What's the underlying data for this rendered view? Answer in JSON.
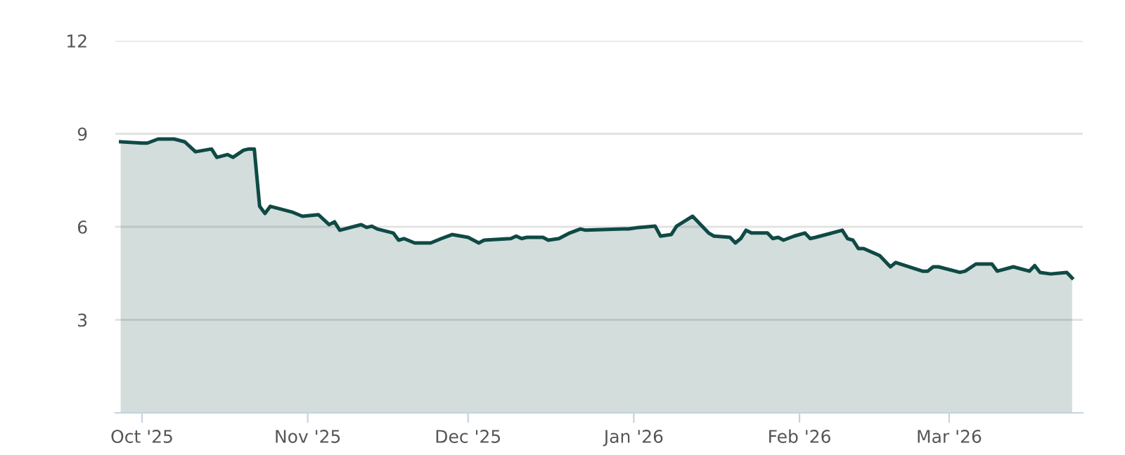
{
  "chart_data": {
    "type": "area",
    "x": [
      "2025-09-27",
      "2025-10-01",
      "2025-10-02",
      "2025-10-04",
      "2025-10-07",
      "2025-10-09",
      "2025-10-11",
      "2025-10-14",
      "2025-10-15",
      "2025-10-17",
      "2025-10-18",
      "2025-10-20",
      "2025-10-21",
      "2025-10-22",
      "2025-10-23",
      "2025-10-24",
      "2025-10-25",
      "2025-10-29",
      "2025-10-31",
      "2025-11-03",
      "2025-11-05",
      "2025-11-06",
      "2025-11-07",
      "2025-11-11",
      "2025-11-12",
      "2025-11-13",
      "2025-11-14",
      "2025-11-17",
      "2025-11-18",
      "2025-11-19",
      "2025-11-21",
      "2025-11-24",
      "2025-11-26",
      "2025-11-28",
      "2025-12-01",
      "2025-12-03",
      "2025-12-04",
      "2025-12-09",
      "2025-12-10",
      "2025-12-11",
      "2025-12-12",
      "2025-12-15",
      "2025-12-16",
      "2025-12-18",
      "2025-12-20",
      "2025-12-22",
      "2025-12-23",
      "2025-12-30",
      "2025-12-31",
      "2026-01-02",
      "2026-01-05",
      "2026-01-06",
      "2026-01-08",
      "2026-01-09",
      "2026-01-12",
      "2026-01-15",
      "2026-01-16",
      "2026-01-19",
      "2026-01-20",
      "2026-01-21",
      "2026-01-22",
      "2026-01-23",
      "2026-01-26",
      "2026-01-27",
      "2026-01-28",
      "2026-01-29",
      "2026-01-31",
      "2026-02-02",
      "2026-02-03",
      "2026-02-04",
      "2026-02-06",
      "2026-02-09",
      "2026-02-10",
      "2026-02-11",
      "2026-02-12",
      "2026-02-13",
      "2026-02-16",
      "2026-02-18",
      "2026-02-19",
      "2026-02-24",
      "2026-02-25",
      "2026-02-26",
      "2026-02-27",
      "2026-03-03",
      "2026-03-04",
      "2026-03-06",
      "2026-03-09",
      "2026-03-10",
      "2026-03-13",
      "2026-03-16",
      "2026-03-17",
      "2026-03-18",
      "2026-03-20",
      "2026-03-23",
      "2026-03-24"
    ],
    "series": [
      {
        "color": "#0f4a45",
        "values": [
          8.74,
          8.7,
          8.7,
          8.83,
          8.83,
          8.74,
          8.42,
          8.51,
          8.24,
          8.33,
          8.24,
          8.47,
          8.51,
          8.51,
          6.66,
          6.43,
          6.66,
          6.48,
          6.34,
          6.39,
          6.07,
          6.16,
          5.89,
          6.07,
          5.98,
          6.02,
          5.93,
          5.8,
          5.57,
          5.62,
          5.48,
          5.48,
          5.62,
          5.75,
          5.66,
          5.48,
          5.57,
          5.62,
          5.7,
          5.62,
          5.66,
          5.66,
          5.57,
          5.62,
          5.8,
          5.93,
          5.89,
          5.93,
          5.93,
          5.98,
          6.02,
          5.7,
          5.75,
          6.02,
          6.34,
          5.8,
          5.7,
          5.66,
          5.48,
          5.62,
          5.89,
          5.8,
          5.8,
          5.62,
          5.66,
          5.57,
          5.7,
          5.8,
          5.62,
          5.66,
          5.75,
          5.89,
          5.62,
          5.57,
          5.3,
          5.3,
          5.07,
          4.71,
          4.85,
          4.57,
          4.57,
          4.71,
          4.71,
          4.53,
          4.57,
          4.8,
          4.8,
          4.57,
          4.71,
          4.57,
          4.75,
          4.53,
          4.48,
          4.53,
          4.35
        ]
      }
    ],
    "xlim": [
      "2025-09-26",
      "2026-03-26"
    ],
    "xticks": [
      {
        "value": "2025-10-01",
        "label": "Oct '25"
      },
      {
        "value": "2025-11-01",
        "label": "Nov '25"
      },
      {
        "value": "2025-12-01",
        "label": "Dec '25"
      },
      {
        "value": "2026-01-01",
        "label": "Jan '26"
      },
      {
        "value": "2026-02-01",
        "label": "Feb '26"
      },
      {
        "value": "2026-03-01",
        "label": "Mar '26"
      }
    ],
    "ylim": [
      0,
      12
    ],
    "yticks": [
      3,
      6,
      9,
      12
    ],
    "grid": "y",
    "legend": false
  }
}
